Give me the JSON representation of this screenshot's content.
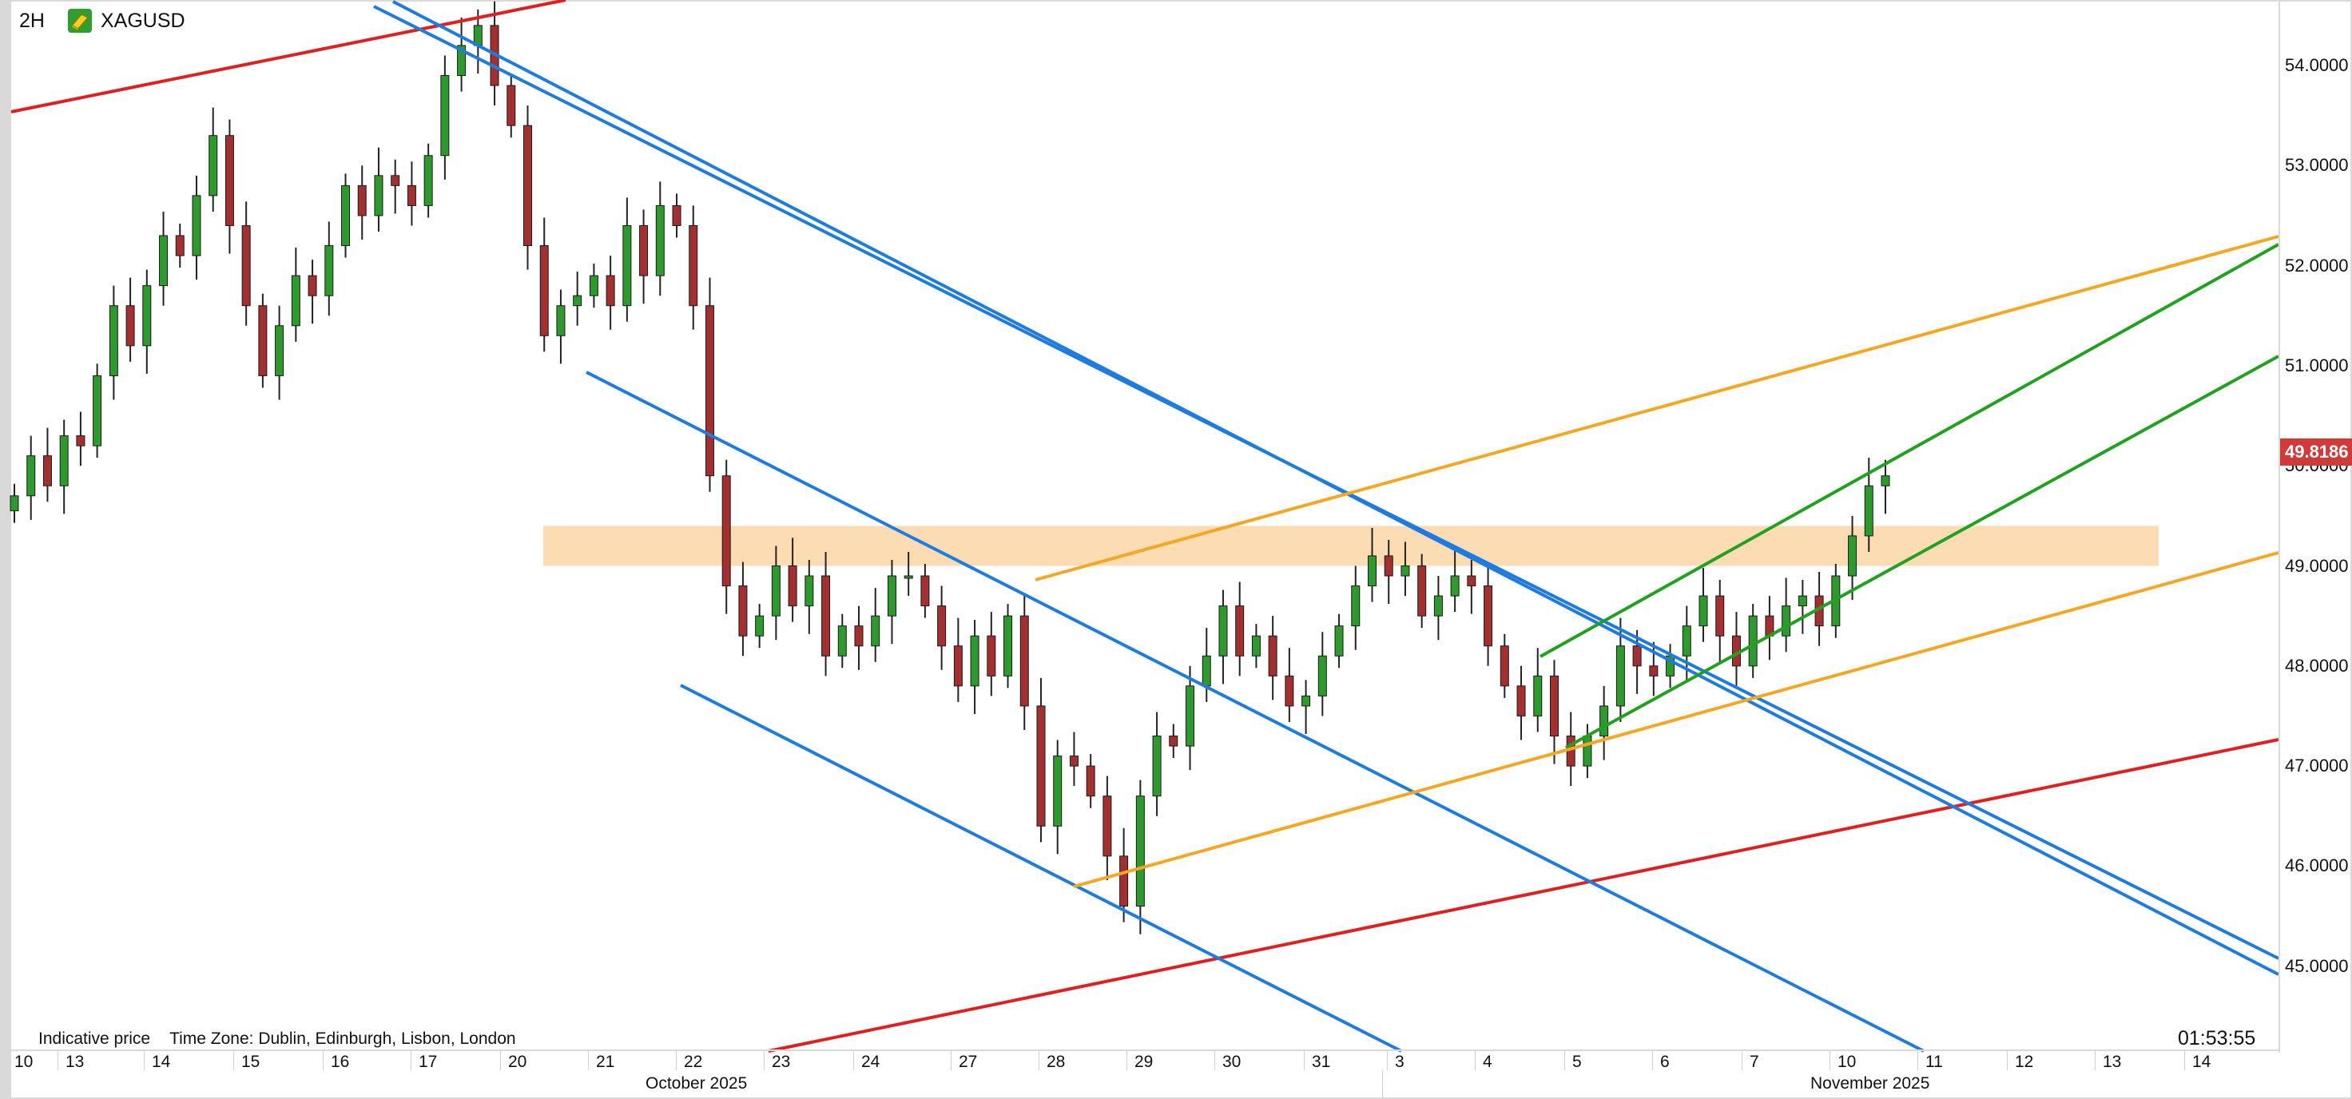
{
  "header": {
    "timeframe": "2H",
    "symbol": "XAGUSD",
    "symbol_icon": "silver-bar-icon"
  },
  "price_axis": {
    "labels": [
      "54.0000",
      "53.0000",
      "52.0000",
      "51.0000",
      "50.0000",
      "49.0000",
      "48.0000",
      "47.0000",
      "46.0000",
      "45.0000"
    ],
    "current_price": "49.8186",
    "current_price_color": "#d23a3a"
  },
  "time_axis": {
    "days": [
      "10",
      "13",
      "14",
      "15",
      "16",
      "17",
      "20",
      "21",
      "22",
      "23",
      "24",
      "27",
      "28",
      "29",
      "30",
      "31",
      "3",
      "4",
      "5",
      "6",
      "7",
      "10",
      "11",
      "12",
      "13",
      "14"
    ],
    "months": [
      "October 2025",
      "November 2025"
    ]
  },
  "footer": {
    "indicative": "Indicative price",
    "timezone": "Time Zone: Dublin, Edinburgh, Lisbon, London",
    "countdown": "01:53:55"
  },
  "colors": {
    "bull": "#2e9a2e",
    "bear": "#a33030",
    "wick": "#222222",
    "trend_red": "#e02020",
    "trend_blue": "#1e7be0",
    "trend_orange": "#f5a623",
    "trend_green": "#22a022",
    "zone": "#fbd6a6"
  },
  "chart_data": {
    "type": "candlestick",
    "instrument": "XAGUSD",
    "timeframe": "2H",
    "ylim": [
      44.0,
      54.7
    ],
    "resistance_zone": [
      49.0,
      49.4
    ],
    "closes": [
      49.7,
      50.1,
      49.8,
      50.3,
      50.2,
      50.9,
      51.6,
      51.2,
      51.8,
      52.3,
      52.1,
      52.7,
      53.3,
      52.4,
      51.6,
      50.9,
      51.4,
      51.9,
      51.7,
      52.2,
      52.8,
      52.5,
      52.9,
      52.8,
      52.6,
      53.1,
      53.9,
      54.2,
      54.4,
      53.8,
      53.4,
      52.2,
      51.3,
      51.6,
      51.7,
      51.9,
      51.6,
      52.4,
      51.9,
      52.6,
      52.4,
      51.6,
      49.9,
      48.8,
      48.3,
      48.5,
      49.0,
      48.6,
      48.9,
      48.1,
      48.4,
      48.2,
      48.5,
      48.9,
      48.9,
      48.6,
      48.2,
      47.8,
      48.3,
      47.9,
      48.5,
      47.6,
      46.4,
      47.1,
      47.0,
      46.7,
      46.1,
      45.6,
      46.7,
      47.3,
      47.2,
      47.8,
      48.1,
      48.6,
      48.1,
      48.3,
      47.9,
      47.6,
      47.7,
      48.1,
      48.4,
      48.8,
      49.1,
      48.9,
      49.0,
      48.5,
      48.7,
      48.9,
      48.8,
      48.2,
      47.8,
      47.5,
      47.9,
      47.3,
      47.0,
      47.3,
      47.6,
      48.2,
      48.0,
      47.9,
      48.1,
      48.4,
      48.7,
      48.3,
      48.0,
      48.5,
      48.3,
      48.6,
      48.7,
      48.4,
      48.9,
      49.3,
      49.8,
      49.9
    ]
  }
}
